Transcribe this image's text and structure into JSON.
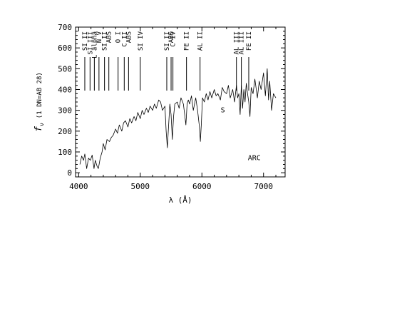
{
  "chart_data": {
    "type": "line",
    "title": "",
    "xlabel": "λ (Å)",
    "ylabel": "f_ν (1 DN=AB 28)",
    "ylabel_main": "f",
    "ylabel_sub": "ν",
    "ylabel_rest": "(1 DN=AB 28)",
    "xlim": [
      3950,
      7350
    ],
    "ylim": [
      -20,
      700
    ],
    "x_ticks": [
      4000,
      5000,
      6000,
      7000
    ],
    "y_ticks": [
      0,
      100,
      200,
      300,
      400,
      500,
      600,
      700
    ],
    "grid": false,
    "annotations": [
      {
        "text": "ARC",
        "x": 6850,
        "y": 60
      },
      {
        "text": "S",
        "x": 6340,
        "y": 290
      }
    ],
    "line_markers": [
      {
        "label": "SI II",
        "x": 4100
      },
      {
        "label": "SI III",
        "x": 4185
      },
      {
        "label": "L alpha",
        "x": 4255
      },
      {
        "label": "N V",
        "x": 4330
      },
      {
        "label": "SI II",
        "x": 4420
      },
      {
        "label": "ABS",
        "x": 4490
      },
      {
        "label": "O I",
        "x": 4640
      },
      {
        "label": "C II",
        "x": 4740
      },
      {
        "label": "ABS",
        "x": 4810
      },
      {
        "label": "SI IV",
        "x": 5000
      },
      {
        "label": "SI II",
        "x": 5430
      },
      {
        "label": "ABS",
        "x": 5500
      },
      {
        "label": "C IV",
        "x": 5530
      },
      {
        "label": "FE II",
        "x": 5750
      },
      {
        "label": "AL II",
        "x": 5970
      },
      {
        "label": "AL III",
        "x": 6560
      },
      {
        "label": "AL III",
        "x": 6640
      },
      {
        "label": "FE II",
        "x": 6760
      }
    ],
    "series": [
      {
        "x": [
          4020,
          4050,
          4080,
          4100,
          4130,
          4160,
          4190,
          4220,
          4250,
          4270,
          4300,
          4320,
          4350,
          4380,
          4400,
          4430,
          4460,
          4500,
          4530,
          4560,
          4600,
          4630,
          4660,
          4700,
          4730,
          4760,
          4800,
          4830,
          4860,
          4900,
          4930,
          4960,
          5000,
          5030,
          5060,
          5100,
          5130,
          5160,
          5200,
          5230,
          5260,
          5300,
          5330,
          5360,
          5400,
          5420,
          5440,
          5460,
          5480,
          5500,
          5520,
          5540,
          5560,
          5600,
          5630,
          5660,
          5700,
          5720,
          5740,
          5760,
          5780,
          5800,
          5830,
          5860,
          5900,
          5930,
          5960,
          5975,
          5990,
          6010,
          6040,
          6070,
          6100,
          6130,
          6160,
          6200,
          6230,
          6260,
          6300,
          6330,
          6360,
          6400,
          6430,
          6460,
          6500,
          6530,
          6560,
          6580,
          6600,
          6620,
          6640,
          6660,
          6680,
          6700,
          6720,
          6740,
          6760,
          6780,
          6800,
          6830,
          6860,
          6900,
          6930,
          6960,
          7000,
          7030,
          7060,
          7080,
          7100,
          7130,
          7160,
          7200
        ],
        "y": [
          40,
          80,
          60,
          90,
          20,
          70,
          60,
          85,
          20,
          60,
          30,
          20,
          70,
          100,
          140,
          110,
          160,
          150,
          170,
          180,
          210,
          190,
          230,
          200,
          240,
          250,
          220,
          260,
          240,
          270,
          250,
          290,
          260,
          300,
          280,
          310,
          290,
          320,
          300,
          330,
          310,
          350,
          340,
          300,
          320,
          200,
          120,
          230,
          330,
          280,
          160,
          270,
          330,
          340,
          310,
          360,
          330,
          280,
          230,
          330,
          350,
          330,
          370,
          300,
          360,
          300,
          220,
          150,
          230,
          360,
          340,
          380,
          350,
          390,
          360,
          400,
          370,
          380,
          350,
          410,
          390,
          380,
          420,
          360,
          400,
          340,
          420,
          360,
          380,
          280,
          420,
          310,
          400,
          340,
          430,
          380,
          340,
          270,
          410,
          380,
          450,
          360,
          440,
          400,
          480,
          370,
          500,
          350,
          440,
          300,
          380,
          360
        ]
      }
    ]
  }
}
